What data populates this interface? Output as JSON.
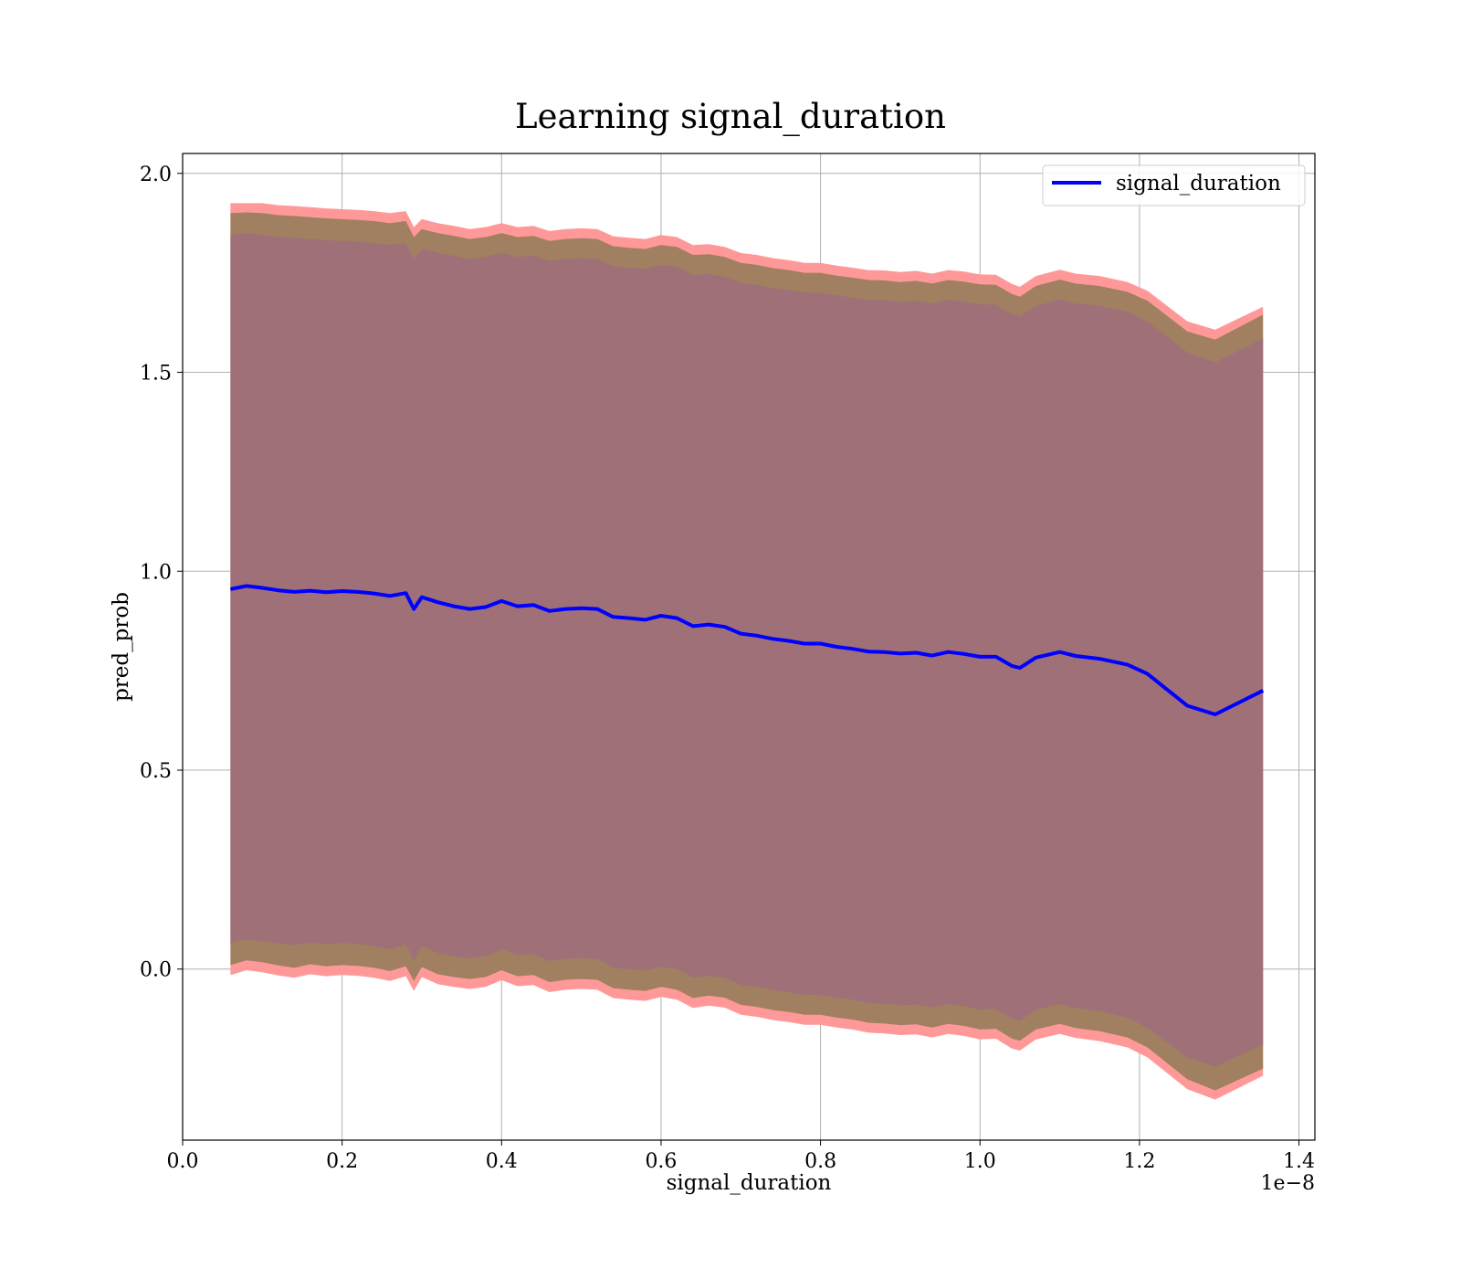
{
  "chart_data": {
    "type": "line",
    "title": "Learning signal_duration",
    "xlabel": "signal_duration",
    "ylabel": "pred_prob",
    "x_offset_label": "1e−8",
    "xlim": [
      0.0,
      1.42
    ],
    "ylim": [
      -0.43,
      2.05
    ],
    "x_tick_labels": [
      "0.0",
      "0.2",
      "0.4",
      "0.6",
      "0.8",
      "1.0",
      "1.2",
      "1.4"
    ],
    "x_ticks": [
      0.0,
      0.2,
      0.4,
      0.6,
      0.8,
      1.0,
      1.2,
      1.4
    ],
    "y_tick_labels": [
      "0.0",
      "0.5",
      "1.0",
      "1.5",
      "2.0"
    ],
    "y_ticks": [
      0.0,
      0.5,
      1.0,
      1.5,
      2.0
    ],
    "grid": true,
    "legend_position": "top-right",
    "x": [
      0.06,
      0.08,
      0.1,
      0.12,
      0.14,
      0.16,
      0.18,
      0.2,
      0.22,
      0.24,
      0.26,
      0.28,
      0.29,
      0.3,
      0.32,
      0.34,
      0.36,
      0.38,
      0.4,
      0.42,
      0.44,
      0.46,
      0.48,
      0.5,
      0.52,
      0.54,
      0.56,
      0.58,
      0.6,
      0.62,
      0.64,
      0.66,
      0.68,
      0.7,
      0.72,
      0.74,
      0.76,
      0.78,
      0.8,
      0.82,
      0.84,
      0.86,
      0.88,
      0.9,
      0.92,
      0.94,
      0.96,
      0.98,
      1.0,
      1.02,
      1.04,
      1.05,
      1.07,
      1.1,
      1.12,
      1.15,
      1.185,
      1.21,
      1.26,
      1.295,
      1.355
    ],
    "series": [
      {
        "name": "signal_duration",
        "color": "#0000ff",
        "values": [
          0.955,
          0.963,
          0.958,
          0.952,
          0.948,
          0.951,
          0.947,
          0.95,
          0.948,
          0.944,
          0.938,
          0.945,
          0.905,
          0.935,
          0.922,
          0.912,
          0.905,
          0.91,
          0.925,
          0.912,
          0.915,
          0.9,
          0.905,
          0.907,
          0.905,
          0.885,
          0.882,
          0.878,
          0.888,
          0.882,
          0.862,
          0.866,
          0.86,
          0.843,
          0.838,
          0.83,
          0.825,
          0.818,
          0.818,
          0.81,
          0.805,
          0.798,
          0.797,
          0.793,
          0.795,
          0.788,
          0.797,
          0.792,
          0.785,
          0.785,
          0.762,
          0.757,
          0.783,
          0.797,
          0.787,
          0.78,
          0.765,
          0.742,
          0.662,
          0.64,
          0.7
        ]
      }
    ],
    "bands": [
      {
        "color": "#ff9999",
        "upper": [
          1.925,
          1.925,
          1.925,
          1.92,
          1.918,
          1.915,
          1.912,
          1.91,
          1.908,
          1.905,
          1.9,
          1.905,
          1.865,
          1.885,
          1.875,
          1.868,
          1.86,
          1.865,
          1.875,
          1.865,
          1.868,
          1.855,
          1.86,
          1.862,
          1.86,
          1.842,
          1.838,
          1.835,
          1.845,
          1.84,
          1.82,
          1.822,
          1.815,
          1.8,
          1.795,
          1.787,
          1.782,
          1.775,
          1.775,
          1.768,
          1.763,
          1.757,
          1.756,
          1.752,
          1.755,
          1.748,
          1.757,
          1.753,
          1.746,
          1.745,
          1.722,
          1.715,
          1.742,
          1.758,
          1.748,
          1.742,
          1.727,
          1.705,
          1.628,
          1.607,
          1.665
        ],
        "lower": [
          -0.015,
          -0.003,
          -0.008,
          -0.016,
          -0.022,
          -0.013,
          -0.018,
          -0.015,
          -0.017,
          -0.022,
          -0.03,
          -0.018,
          -0.055,
          -0.02,
          -0.038,
          -0.045,
          -0.05,
          -0.045,
          -0.028,
          -0.043,
          -0.04,
          -0.058,
          -0.052,
          -0.05,
          -0.052,
          -0.073,
          -0.077,
          -0.08,
          -0.07,
          -0.077,
          -0.098,
          -0.092,
          -0.097,
          -0.115,
          -0.12,
          -0.128,
          -0.133,
          -0.14,
          -0.14,
          -0.147,
          -0.152,
          -0.16,
          -0.162,
          -0.166,
          -0.164,
          -0.172,
          -0.163,
          -0.168,
          -0.177,
          -0.175,
          -0.2,
          -0.205,
          -0.177,
          -0.163,
          -0.173,
          -0.181,
          -0.197,
          -0.222,
          -0.302,
          -0.328,
          -0.268
        ]
      },
      {
        "color": "#a08060",
        "upper": [
          1.9,
          1.902,
          1.9,
          1.895,
          1.893,
          1.89,
          1.887,
          1.885,
          1.883,
          1.88,
          1.875,
          1.88,
          1.84,
          1.86,
          1.85,
          1.843,
          1.835,
          1.84,
          1.85,
          1.84,
          1.843,
          1.83,
          1.835,
          1.837,
          1.835,
          1.817,
          1.813,
          1.81,
          1.82,
          1.815,
          1.795,
          1.797,
          1.79,
          1.775,
          1.77,
          1.762,
          1.757,
          1.75,
          1.75,
          1.743,
          1.738,
          1.732,
          1.731,
          1.727,
          1.73,
          1.723,
          1.732,
          1.728,
          1.721,
          1.72,
          1.697,
          1.69,
          1.717,
          1.733,
          1.723,
          1.717,
          1.702,
          1.68,
          1.603,
          1.582,
          1.645
        ],
        "lower": [
          0.01,
          0.022,
          0.017,
          0.009,
          0.003,
          0.012,
          0.007,
          0.01,
          0.008,
          0.003,
          -0.005,
          0.007,
          -0.03,
          0.005,
          -0.013,
          -0.02,
          -0.025,
          -0.02,
          -0.003,
          -0.018,
          -0.015,
          -0.033,
          -0.027,
          -0.025,
          -0.027,
          -0.048,
          -0.052,
          -0.055,
          -0.045,
          -0.052,
          -0.073,
          -0.067,
          -0.072,
          -0.09,
          -0.095,
          -0.103,
          -0.108,
          -0.115,
          -0.115,
          -0.122,
          -0.127,
          -0.135,
          -0.137,
          -0.141,
          -0.139,
          -0.147,
          -0.138,
          -0.143,
          -0.152,
          -0.15,
          -0.175,
          -0.18,
          -0.152,
          -0.138,
          -0.148,
          -0.156,
          -0.172,
          -0.197,
          -0.277,
          -0.305,
          -0.25
        ]
      },
      {
        "color": "#a07078",
        "upper": [
          1.845,
          1.85,
          1.845,
          1.84,
          1.838,
          1.835,
          1.832,
          1.83,
          1.828,
          1.825,
          1.82,
          1.825,
          1.785,
          1.81,
          1.8,
          1.793,
          1.785,
          1.79,
          1.8,
          1.79,
          1.793,
          1.78,
          1.785,
          1.787,
          1.785,
          1.767,
          1.763,
          1.76,
          1.77,
          1.765,
          1.745,
          1.747,
          1.74,
          1.725,
          1.72,
          1.712,
          1.707,
          1.7,
          1.7,
          1.693,
          1.688,
          1.682,
          1.681,
          1.677,
          1.68,
          1.673,
          1.682,
          1.678,
          1.671,
          1.67,
          1.647,
          1.64,
          1.667,
          1.683,
          1.673,
          1.667,
          1.652,
          1.628,
          1.55,
          1.525,
          1.585
        ],
        "lower": [
          0.065,
          0.075,
          0.07,
          0.065,
          0.06,
          0.067,
          0.062,
          0.065,
          0.063,
          0.058,
          0.05,
          0.062,
          0.022,
          0.058,
          0.04,
          0.032,
          0.027,
          0.032,
          0.05,
          0.035,
          0.038,
          0.02,
          0.025,
          0.028,
          0.025,
          0.003,
          0.0,
          -0.004,
          0.006,
          0.0,
          -0.022,
          -0.017,
          -0.022,
          -0.04,
          -0.045,
          -0.053,
          -0.058,
          -0.065,
          -0.065,
          -0.072,
          -0.077,
          -0.085,
          -0.087,
          -0.091,
          -0.089,
          -0.097,
          -0.088,
          -0.093,
          -0.102,
          -0.1,
          -0.125,
          -0.13,
          -0.102,
          -0.088,
          -0.098,
          -0.106,
          -0.122,
          -0.148,
          -0.222,
          -0.245,
          -0.19
        ]
      }
    ]
  }
}
